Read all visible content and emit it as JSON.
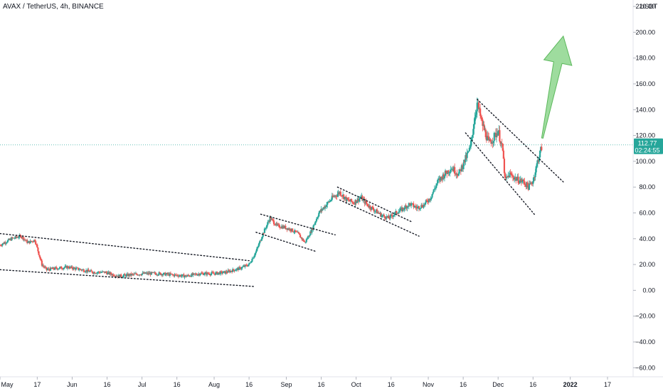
{
  "header": {
    "title": "AVAX / TetherUS, 4h, BINANCE"
  },
  "price_axis": {
    "unit": "USDT"
  },
  "last_price": {
    "value": "112.77",
    "countdown": "02:24:55",
    "color": "#26a69a"
  },
  "colors": {
    "up": "#26a69a",
    "down": "#ef5350",
    "arrow": "#7ed07e",
    "grid": "#f0f3fa"
  },
  "chart_data": {
    "type": "candlestick",
    "title": "AVAX / TetherUS, 4h, BINANCE",
    "ylim": [
      -67,
      225
    ],
    "yticks": [
      220,
      200,
      180,
      160,
      140,
      120,
      100,
      80,
      60,
      40,
      20,
      0,
      -20,
      -40,
      -60
    ],
    "ytick_labels": [
      "220.00",
      "200.00",
      "180.00",
      "160.00",
      "140.00",
      "120.00",
      "100.00",
      "80.00",
      "60.00",
      "40.00",
      "20.00",
      "0.00",
      "−20.00",
      "−40.00",
      "−60.00"
    ],
    "x_range": [
      "2021-05-01",
      "2022-01-28"
    ],
    "xticks": [
      {
        "label": "May",
        "date": "2021-05-01"
      },
      {
        "label": "17",
        "date": "2021-05-17"
      },
      {
        "label": "Jun",
        "date": "2021-06-01"
      },
      {
        "label": "16",
        "date": "2021-06-16"
      },
      {
        "label": "Jul",
        "date": "2021-07-01"
      },
      {
        "label": "16",
        "date": "2021-07-16"
      },
      {
        "label": "Aug",
        "date": "2021-08-01"
      },
      {
        "label": "16",
        "date": "2021-08-16"
      },
      {
        "label": "Sep",
        "date": "2021-09-01"
      },
      {
        "label": "16",
        "date": "2021-09-16"
      },
      {
        "label": "Oct",
        "date": "2021-10-01"
      },
      {
        "label": "16",
        "date": "2021-10-16"
      },
      {
        "label": "Nov",
        "date": "2021-11-01"
      },
      {
        "label": "16",
        "date": "2021-11-16"
      },
      {
        "label": "Dec",
        "date": "2021-12-01"
      },
      {
        "label": "16",
        "date": "2021-12-16"
      },
      {
        "label": "2022",
        "date": "2022-01-01"
      },
      {
        "label": "17",
        "date": "2022-01-17"
      }
    ],
    "price_path": [
      [
        "2021-05-01",
        35
      ],
      [
        "2021-05-06",
        40
      ],
      [
        "2021-05-10",
        42
      ],
      [
        "2021-05-13",
        37
      ],
      [
        "2021-05-16",
        39
      ],
      [
        "2021-05-19",
        20
      ],
      [
        "2021-05-21",
        16
      ],
      [
        "2021-05-25",
        17
      ],
      [
        "2021-05-30",
        18
      ],
      [
        "2021-06-05",
        16
      ],
      [
        "2021-06-10",
        14
      ],
      [
        "2021-06-15",
        14
      ],
      [
        "2021-06-21",
        11
      ],
      [
        "2021-06-26",
        12
      ],
      [
        "2021-07-02",
        13
      ],
      [
        "2021-07-08",
        13
      ],
      [
        "2021-07-14",
        12
      ],
      [
        "2021-07-20",
        11
      ],
      [
        "2021-07-26",
        13
      ],
      [
        "2021-08-01",
        13
      ],
      [
        "2021-08-06",
        14
      ],
      [
        "2021-08-12",
        17
      ],
      [
        "2021-08-16",
        20
      ],
      [
        "2021-08-19",
        30
      ],
      [
        "2021-08-22",
        44
      ],
      [
        "2021-08-25",
        56
      ],
      [
        "2021-08-28",
        50
      ],
      [
        "2021-08-31",
        49
      ],
      [
        "2021-09-03",
        47
      ],
      [
        "2021-09-06",
        44
      ],
      [
        "2021-09-09",
        37
      ],
      [
        "2021-09-12",
        47
      ],
      [
        "2021-09-15",
        60
      ],
      [
        "2021-09-18",
        66
      ],
      [
        "2021-09-21",
        72
      ],
      [
        "2021-09-24",
        76
      ],
      [
        "2021-09-27",
        70
      ],
      [
        "2021-09-30",
        68
      ],
      [
        "2021-10-03",
        72
      ],
      [
        "2021-10-06",
        66
      ],
      [
        "2021-10-09",
        62
      ],
      [
        "2021-10-12",
        58
      ],
      [
        "2021-10-15",
        56
      ],
      [
        "2021-10-18",
        60
      ],
      [
        "2021-10-21",
        63
      ],
      [
        "2021-10-24",
        67
      ],
      [
        "2021-10-27",
        64
      ],
      [
        "2021-10-30",
        66
      ],
      [
        "2021-11-02",
        72
      ],
      [
        "2021-11-05",
        84
      ],
      [
        "2021-11-08",
        90
      ],
      [
        "2021-11-11",
        95
      ],
      [
        "2021-11-14",
        90
      ],
      [
        "2021-11-17",
        102
      ],
      [
        "2021-11-19",
        110
      ],
      [
        "2021-11-21",
        135
      ],
      [
        "2021-11-22",
        145
      ],
      [
        "2021-11-24",
        130
      ],
      [
        "2021-11-27",
        114
      ],
      [
        "2021-11-29",
        118
      ],
      [
        "2021-12-01",
        124
      ],
      [
        "2021-12-03",
        108
      ],
      [
        "2021-12-04",
        85
      ],
      [
        "2021-12-06",
        90
      ],
      [
        "2021-12-09",
        86
      ],
      [
        "2021-12-12",
        84
      ],
      [
        "2021-12-14",
        80
      ],
      [
        "2021-12-16",
        85
      ],
      [
        "2021-12-18",
        100
      ],
      [
        "2021-12-20",
        113
      ]
    ],
    "trend_lines": [
      {
        "from": [
          "2021-05-01",
          44
        ],
        "to": [
          "2021-08-16",
          23
        ]
      },
      {
        "from": [
          "2021-05-01",
          16
        ],
        "to": [
          "2021-08-18",
          3
        ]
      },
      {
        "from": [
          "2021-08-21",
          59
        ],
        "to": [
          "2021-09-22",
          43
        ]
      },
      {
        "from": [
          "2021-08-19",
          45
        ],
        "to": [
          "2021-09-14",
          30
        ]
      },
      {
        "from": [
          "2021-09-23",
          80
        ],
        "to": [
          "2021-10-25",
          53
        ]
      },
      {
        "from": [
          "2021-09-24",
          70
        ],
        "to": [
          "2021-10-28",
          42
        ]
      },
      {
        "from": [
          "2021-11-22",
          148
        ],
        "to": [
          "2021-12-29",
          84
        ]
      },
      {
        "from": [
          "2021-11-17",
          122
        ],
        "to": [
          "2021-12-17",
          58
        ]
      }
    ],
    "arrow": {
      "from": [
        "2021-12-20",
        118
      ],
      "to": [
        "2021-12-29",
        197
      ]
    },
    "grid": false,
    "legend": "none"
  }
}
